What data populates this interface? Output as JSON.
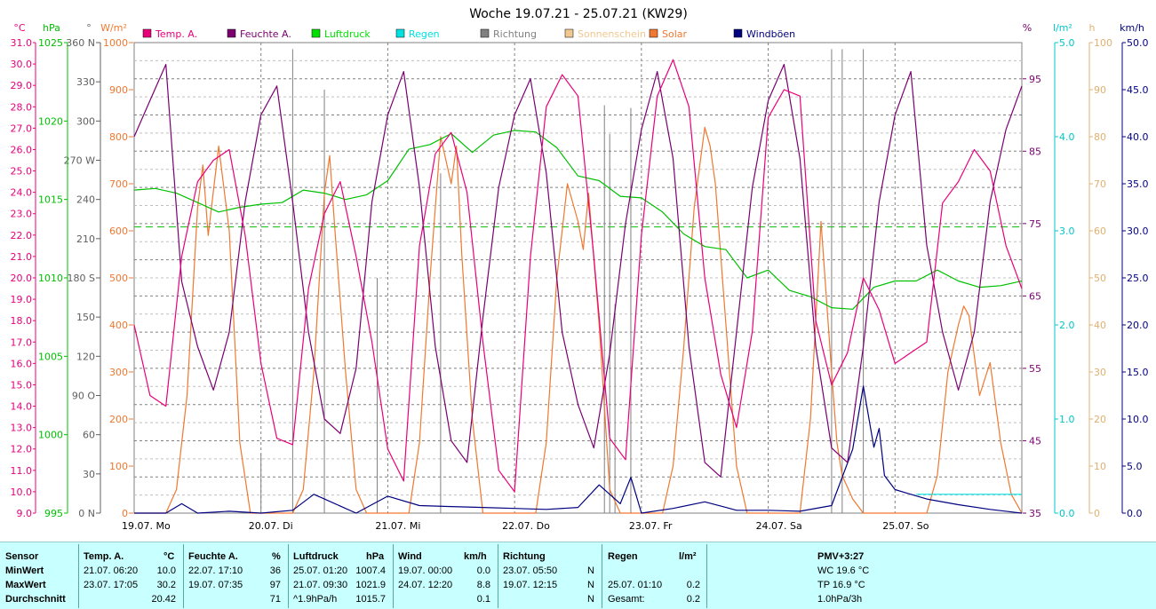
{
  "chart_data": {
    "type": "line",
    "title": "Woche 19.07.21 - 25.07.21 (KW29)",
    "x_range": [
      "2021-07-19 00:00",
      "2021-07-26 00:00"
    ],
    "day_labels": [
      "19.07. Mo",
      "20.07. Di",
      "21.07. Mi",
      "22.07. Do",
      "23.07. Fr",
      "24.07. Sa",
      "25.07. So"
    ],
    "legend": [
      {
        "name": "Temp. A.",
        "color": "#e8007a"
      },
      {
        "name": "Feuchte A.",
        "color": "#7a0070"
      },
      {
        "name": "Luftdruck",
        "color": "#00e000"
      },
      {
        "name": "Regen",
        "color": "#00e0e0"
      },
      {
        "name": "Richtung",
        "color": "#808080"
      },
      {
        "name": "Sonnenschein",
        "color": "#f0c890"
      },
      {
        "name": "Solar",
        "color": "#f07830"
      },
      {
        "name": "Windböen",
        "color": "#000080"
      }
    ],
    "axes": {
      "temp": {
        "unit": "°C",
        "range": [
          9.0,
          31.0
        ],
        "ticks": [
          "31.0",
          "30.0",
          "29.0",
          "28.0",
          "27.0",
          "26.0",
          "25.0",
          "24.0",
          "23.0",
          "22.0",
          "21.0",
          "20.0",
          "19.0",
          "18.0",
          "17.0",
          "16.0",
          "15.0",
          "14.0",
          "13.0",
          "12.0",
          "11.0",
          "10.0",
          "9.0"
        ],
        "color": "#e8007a"
      },
      "pressure": {
        "unit": "hPa",
        "range": [
          995,
          1025
        ],
        "ticks": [
          "1025",
          "1020",
          "1015",
          "1010",
          "1005",
          "1000",
          "995"
        ],
        "color": "#00c000"
      },
      "direction": {
        "unit": "°",
        "range": [
          0,
          360
        ],
        "ticks": [
          "360 N",
          "330",
          "300",
          "270 W",
          "240",
          "210",
          "180 S",
          "150",
          "120",
          "90 O",
          "60",
          "30",
          "0 N"
        ],
        "color": "#606060"
      },
      "solar": {
        "unit": "W/m²",
        "range": [
          0,
          1000
        ],
        "ticks": [
          "1000",
          "900",
          "800",
          "700",
          "600",
          "500",
          "400",
          "300",
          "200",
          "100",
          "0"
        ],
        "color": "#f07830"
      },
      "humidity": {
        "unit": "%",
        "range": [
          35,
          100
        ],
        "ticks": [
          "95",
          "85",
          "75",
          "65",
          "55",
          "45",
          "35"
        ],
        "color": "#7a0070"
      },
      "rain": {
        "unit": "l/m²",
        "range": [
          0,
          5
        ],
        "ticks": [
          "5.0",
          "4.0",
          "3.0",
          "2.0",
          "1.0",
          "0.0"
        ],
        "color": "#00c8c8"
      },
      "sunshine": {
        "unit": "h",
        "range": [
          0,
          100
        ],
        "ticks": [
          "100",
          "90",
          "80",
          "70",
          "60",
          "50",
          "40",
          "30",
          "20",
          "10",
          "0"
        ],
        "color": "#e0b070"
      },
      "wind": {
        "unit": "km/h",
        "range": [
          0,
          50
        ],
        "ticks": [
          "50.0",
          "45.0",
          "40.0",
          "35.0",
          "30.0",
          "25.0",
          "20.0",
          "15.0",
          "10.0",
          "5.0",
          "0.0"
        ],
        "color": "#000080"
      }
    },
    "reference_line": {
      "axis": "pressure",
      "value": 1013.25
    },
    "series": [
      {
        "name": "Temp. A.",
        "axis": "temp",
        "color": "#e8007a",
        "x": [
          0,
          3,
          6,
          9,
          12,
          15,
          18,
          21,
          24,
          27,
          30,
          33,
          36,
          39,
          42,
          45,
          48,
          51,
          54,
          57,
          60,
          63,
          66,
          69,
          72,
          75,
          78,
          81,
          84,
          87,
          90,
          93,
          96,
          99,
          102,
          105,
          108,
          111,
          114,
          117,
          120,
          123,
          126,
          129,
          132,
          135,
          138,
          141,
          144,
          147,
          150,
          153,
          156,
          159,
          162,
          165,
          168
        ],
        "y": [
          17.8,
          14.5,
          14.0,
          21.0,
          24.5,
          25.5,
          26.0,
          22.0,
          16.0,
          12.5,
          12.2,
          19.5,
          23.0,
          24.5,
          21.0,
          17.0,
          12.0,
          10.5,
          21.5,
          25.8,
          26.8,
          24.0,
          17.0,
          11.0,
          10.0,
          21.0,
          28.0,
          29.5,
          28.5,
          21.0,
          12.5,
          11.5,
          22.0,
          28.5,
          30.2,
          28.0,
          20.0,
          15.5,
          13.0,
          17.5,
          27.5,
          28.8,
          28.5,
          18.0,
          15.0,
          16.5,
          20.0,
          18.5,
          16.0,
          16.5,
          17.0,
          23.5,
          24.5,
          26.0,
          25.0,
          21.5,
          19.5
        ]
      },
      {
        "name": "Feuchte A.",
        "axis": "humidity",
        "color": "#7a0070",
        "x": [
          0,
          3,
          6,
          9,
          12,
          15,
          18,
          21,
          24,
          27,
          30,
          33,
          36,
          39,
          42,
          45,
          48,
          51,
          54,
          57,
          60,
          63,
          66,
          69,
          72,
          75,
          78,
          81,
          84,
          87,
          90,
          93,
          96,
          99,
          102,
          105,
          108,
          111,
          114,
          117,
          120,
          123,
          126,
          129,
          132,
          135,
          138,
          141,
          144,
          147,
          150,
          153,
          156,
          159,
          162,
          165,
          168
        ],
        "y": [
          87,
          92,
          97,
          67,
          58,
          52,
          60,
          78,
          90,
          94,
          78,
          60,
          48,
          46,
          55,
          78,
          90,
          96,
          80,
          58,
          45,
          42,
          62,
          80,
          90,
          95,
          82,
          60,
          50,
          44,
          57,
          75,
          88,
          96,
          84,
          58,
          42,
          40,
          60,
          80,
          92,
          97,
          84,
          58,
          44,
          42,
          58,
          78,
          90,
          96,
          72,
          60,
          52,
          60,
          78,
          88,
          94
        ]
      },
      {
        "name": "Luftdruck",
        "axis": "pressure",
        "color": "#00c000",
        "x": [
          0,
          4,
          8,
          12,
          16,
          20,
          24,
          28,
          32,
          36,
          40,
          44,
          48,
          52,
          56,
          60,
          64,
          68,
          72,
          76,
          80,
          84,
          88,
          92,
          96,
          100,
          104,
          108,
          112,
          116,
          120,
          124,
          128,
          132,
          136,
          140,
          144,
          148,
          152,
          156,
          160,
          164,
          168
        ],
        "y": [
          1015.6,
          1015.7,
          1015.4,
          1014.8,
          1014.2,
          1014.5,
          1014.7,
          1014.8,
          1015.6,
          1015.4,
          1015.0,
          1015.3,
          1016.2,
          1018.2,
          1018.5,
          1019.2,
          1018.0,
          1019.1,
          1019.4,
          1019.3,
          1018.3,
          1016.5,
          1016.2,
          1015.2,
          1015.1,
          1014.2,
          1012.8,
          1012.0,
          1011.8,
          1010.0,
          1010.5,
          1009.2,
          1008.8,
          1008.1,
          1008.0,
          1009.4,
          1009.8,
          1009.8,
          1010.5,
          1009.8,
          1009.4,
          1009.5,
          1009.8
        ]
      },
      {
        "name": "Solar",
        "axis": "solar",
        "color": "#f07830",
        "x": [
          0,
          4,
          6,
          8,
          10,
          12,
          13,
          14,
          16,
          18,
          20,
          22,
          24,
          28,
          30,
          32,
          34,
          36,
          37,
          38,
          40,
          42,
          44,
          46,
          48,
          52,
          54,
          56,
          58,
          60,
          61,
          62,
          64,
          66,
          68,
          70,
          72,
          76,
          78,
          80,
          82,
          84,
          85,
          86,
          88,
          90,
          92,
          94,
          96,
          100,
          102,
          104,
          106,
          108,
          109,
          110,
          112,
          114,
          116,
          118,
          120,
          124,
          126,
          128,
          130,
          132,
          133,
          134,
          136,
          138,
          140,
          142,
          144,
          148,
          150,
          152,
          154,
          156,
          157,
          158,
          160,
          162,
          164,
          166,
          168
        ],
        "y": [
          0,
          0,
          0,
          50,
          250,
          650,
          740,
          590,
          780,
          600,
          150,
          0,
          0,
          0,
          0,
          50,
          300,
          680,
          760,
          600,
          300,
          50,
          0,
          0,
          0,
          0,
          150,
          500,
          800,
          700,
          780,
          550,
          200,
          0,
          0,
          0,
          0,
          0,
          150,
          500,
          700,
          620,
          560,
          680,
          400,
          50,
          0,
          0,
          0,
          0,
          100,
          350,
          650,
          820,
          780,
          700,
          400,
          100,
          0,
          0,
          0,
          0,
          0,
          200,
          620,
          300,
          150,
          80,
          30,
          0,
          0,
          0,
          0,
          0,
          0,
          80,
          300,
          400,
          440,
          420,
          250,
          320,
          150,
          40,
          0
        ]
      },
      {
        "name": "Windböen",
        "axis": "wind",
        "color": "#000080",
        "x": [
          0,
          6,
          9,
          12,
          18,
          24,
          30,
          34,
          36,
          42,
          48,
          54,
          60,
          66,
          72,
          78,
          84,
          88,
          90,
          92,
          94,
          96,
          102,
          108,
          112,
          114,
          120,
          126,
          132,
          136,
          138,
          140,
          141,
          142,
          144,
          150,
          156,
          162,
          168
        ],
        "y": [
          0,
          0,
          1.0,
          0,
          0.2,
          0,
          0.3,
          2.0,
          1.5,
          0,
          1.8,
          0.8,
          0.7,
          0.6,
          0.5,
          0.4,
          0.6,
          3.0,
          2.0,
          1.0,
          3.8,
          0,
          0.5,
          1.2,
          0.6,
          0.3,
          0.3,
          0.2,
          0.8,
          6.8,
          13.5,
          7.0,
          9.0,
          4.0,
          2.5,
          1.5,
          0.9,
          0.4,
          0
        ]
      },
      {
        "name": "Regen",
        "axis": "rain",
        "color": "#00e0e0",
        "x": [
          148,
          168
        ],
        "y": [
          0.2,
          0.2
        ]
      },
      {
        "name": "Richtung",
        "axis": "direction",
        "color": "#808080",
        "x": [
          24,
          24.2,
          30,
          30.2,
          36,
          36.2,
          46,
          46.2,
          58,
          58.2,
          89,
          89.2,
          90,
          90.2,
          91,
          91.2,
          94,
          94.2,
          95,
          95.2,
          132,
          132.2,
          134,
          134.2,
          138,
          138.2
        ],
        "y": [
          45,
          0,
          355,
          0,
          324,
          0,
          180,
          0,
          260,
          0,
          312,
          0,
          290,
          0,
          160,
          0,
          310,
          0,
          0,
          0,
          355,
          0,
          355,
          0,
          355,
          0
        ]
      }
    ]
  },
  "summary": {
    "headers": {
      "sensor": "Sensor",
      "temp": "Temp. A.",
      "temp_unit": "°C",
      "feuchte": "Feuchte A.",
      "feuchte_unit": "%",
      "luftdruck": "Luftdruck",
      "luftdruck_unit": "hPa",
      "wind": "Wind",
      "wind_unit": "km/h",
      "richtung": "Richtung",
      "regen": "Regen",
      "regen_unit": "l/m²",
      "pmv": "PMV+3:27"
    },
    "rows": [
      {
        "label": "MinWert",
        "temp_time": "21.07.  06:20",
        "temp_val": "10.0",
        "feuchte_time": "22.07.  17:10",
        "feuchte_val": "36",
        "druck_time": "25.07.  01:20",
        "druck_val": "1007.4",
        "wind_time": "19.07.  00:00",
        "wind_val": "0.0",
        "richtung_time": "23.07.  05:50",
        "richtung_val": "N",
        "regen_time": "",
        "regen_val": "",
        "extra": "WC 19.6 °C"
      },
      {
        "label": "MaxWert",
        "temp_time": "23.07.  17:05",
        "temp_val": "30.2",
        "feuchte_time": "19.07.  07:35",
        "feuchte_val": "97",
        "druck_time": "21.07.  09:30",
        "druck_val": "1021.9",
        "wind_time": "24.07.  12:20",
        "wind_val": "8.8",
        "richtung_time": "19.07.  12:15",
        "richtung_val": "N",
        "regen_time": "25.07.  01:10",
        "regen_val": "0.2",
        "extra": "TP 16.9 °C"
      },
      {
        "label": "Durchschnitt",
        "temp_time": "",
        "temp_val": "20.42",
        "feuchte_time": "",
        "feuchte_val": "71",
        "druck_time": "^1.9hPa/h",
        "druck_val": "1015.7",
        "wind_time": "",
        "wind_val": "0.1",
        "richtung_time": "",
        "richtung_val": "N",
        "regen_time": "Gesamt:",
        "regen_val": "0.2",
        "extra": "1.0hPa/3h"
      }
    ]
  }
}
